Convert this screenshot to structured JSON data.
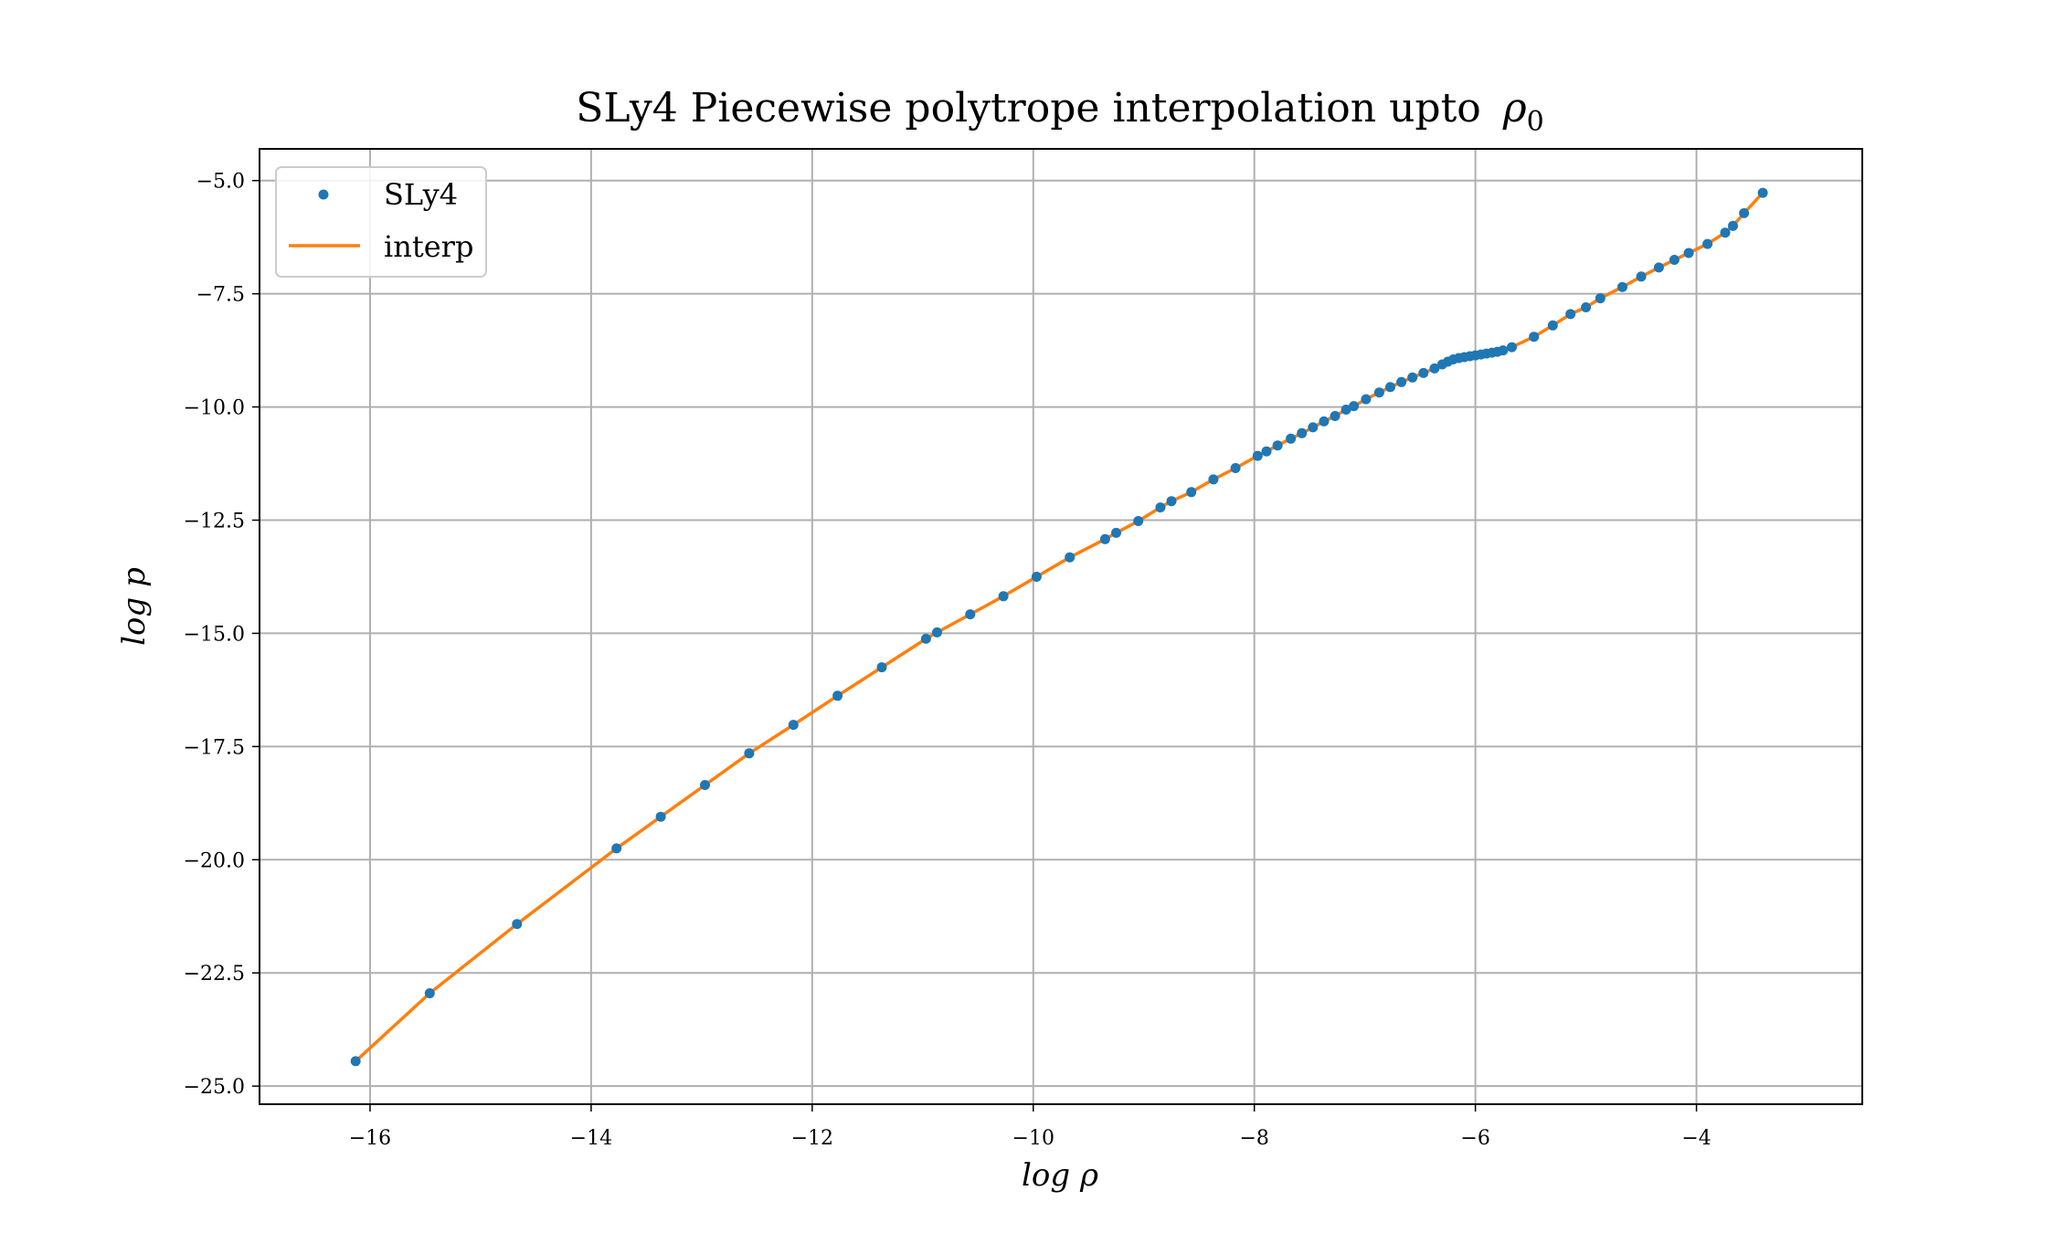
{
  "chart_data": {
    "type": "line",
    "title": "SLy4 Piecewise polytrope interpolation upto",
    "title_symbol": "ρ",
    "title_subscript": "0",
    "xlabel": "log ρ",
    "ylabel": "log p",
    "xlim": [
      -17.0,
      -2.5
    ],
    "ylim": [
      -25.4,
      -4.3
    ],
    "xticks": [
      -16,
      -14,
      -12,
      -10,
      -8,
      -6,
      -4
    ],
    "xtick_labels": [
      "−16",
      "−14",
      "−12",
      "−10",
      "−8",
      "−6",
      "−4"
    ],
    "yticks": [
      -25.0,
      -22.5,
      -20.0,
      -17.5,
      -15.0,
      -12.5,
      -10.0,
      -7.5,
      -5.0
    ],
    "ytick_labels": [
      "−25.0",
      "−22.5",
      "−20.0",
      "−17.5",
      "−15.0",
      "−12.5",
      "−10.0",
      "−7.5",
      "−5.0"
    ],
    "grid": true,
    "legend_position": "top-left",
    "series": [
      {
        "name": "SLy4",
        "style": "points",
        "color": "#1f77b4",
        "x": [
          -16.13,
          -15.46,
          -14.67,
          -13.77,
          -13.37,
          -12.97,
          -12.57,
          -12.17,
          -11.77,
          -11.37,
          -10.97,
          -10.87,
          -10.57,
          -10.27,
          -9.97,
          -9.67,
          -9.35,
          -9.25,
          -9.05,
          -8.85,
          -8.75,
          -8.57,
          -8.37,
          -8.17,
          -7.97,
          -7.89,
          -7.79,
          -7.67,
          -7.57,
          -7.47,
          -7.37,
          -7.27,
          -7.17,
          -7.1,
          -6.99,
          -6.87,
          -6.77,
          -6.67,
          -6.57,
          -6.47,
          -6.37,
          -6.3,
          -6.25,
          -6.2,
          -6.15,
          -6.1,
          -6.05,
          -6.0,
          -5.95,
          -5.9,
          -5.85,
          -5.8,
          -5.75,
          -5.67,
          -5.47,
          -5.3,
          -5.14,
          -5.0,
          -4.87,
          -4.67,
          -4.5,
          -4.34,
          -4.2,
          -4.07,
          -3.9,
          -3.74,
          -3.67,
          -3.57,
          -3.4
        ],
        "y": [
          -24.45,
          -22.95,
          -21.42,
          -19.75,
          -19.05,
          -18.35,
          -17.65,
          -17.02,
          -16.38,
          -15.75,
          -15.12,
          -14.98,
          -14.58,
          -14.18,
          -13.75,
          -13.32,
          -12.92,
          -12.78,
          -12.52,
          -12.22,
          -12.08,
          -11.88,
          -11.6,
          -11.35,
          -11.08,
          -10.98,
          -10.85,
          -10.7,
          -10.58,
          -10.45,
          -10.32,
          -10.2,
          -10.06,
          -9.98,
          -9.83,
          -9.68,
          -9.56,
          -9.45,
          -9.35,
          -9.25,
          -9.15,
          -9.06,
          -9.0,
          -8.95,
          -8.92,
          -8.9,
          -8.88,
          -8.86,
          -8.84,
          -8.82,
          -8.8,
          -8.78,
          -8.75,
          -8.68,
          -8.45,
          -8.2,
          -7.95,
          -7.8,
          -7.6,
          -7.35,
          -7.12,
          -6.92,
          -6.75,
          -6.6,
          -6.4,
          -6.15,
          -6.0,
          -5.72,
          -5.27
        ]
      },
      {
        "name": "interp",
        "style": "line",
        "color": "#ff7f0e"
      }
    ]
  }
}
